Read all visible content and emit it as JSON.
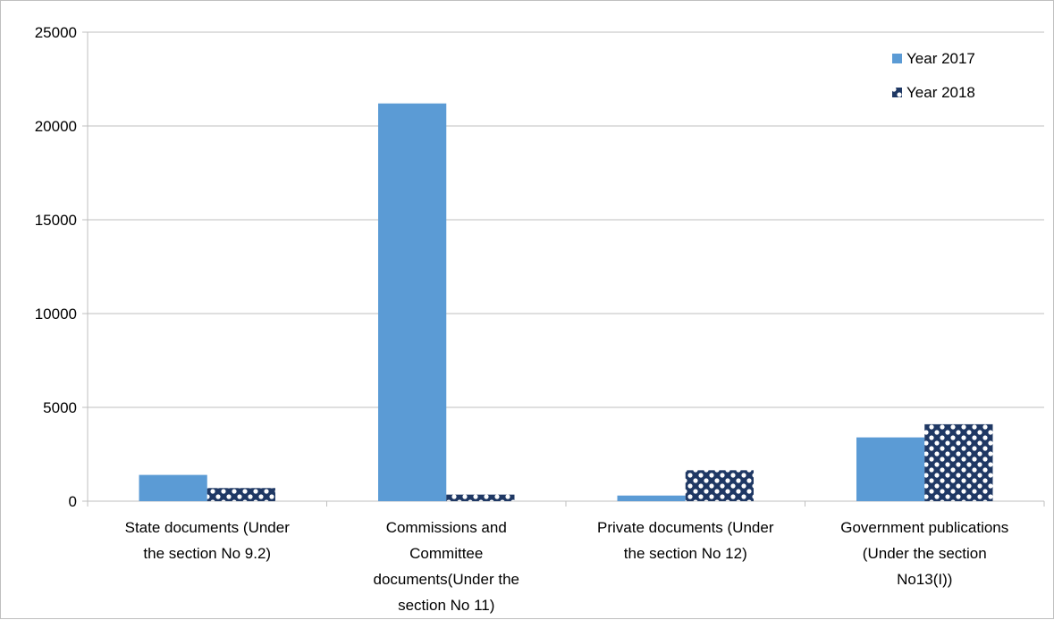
{
  "chart_data": {
    "type": "bar",
    "title": "",
    "xlabel": "",
    "ylabel": "",
    "ylim": [
      0,
      25000
    ],
    "yticks": [
      0,
      5000,
      10000,
      15000,
      20000,
      25000
    ],
    "grid": true,
    "legend_position": "top-right",
    "categories": [
      [
        "State documents (Under",
        "the section No 9.2)"
      ],
      [
        "Commissions and",
        "Committee",
        "documents(Under the",
        "section No 11)"
      ],
      [
        "Private documents (Under",
        "the section No 12)"
      ],
      [
        "Government publications",
        "(Under the section",
        "No13(I))"
      ]
    ],
    "series": [
      {
        "name": "Year 2017",
        "values": [
          1400,
          21200,
          300,
          3400
        ],
        "color": "#5b9bd5",
        "pattern": "solid"
      },
      {
        "name": "Year 2018",
        "values": [
          700,
          350,
          1650,
          4100
        ],
        "color": "#1f3864",
        "pattern": "checker"
      }
    ]
  }
}
